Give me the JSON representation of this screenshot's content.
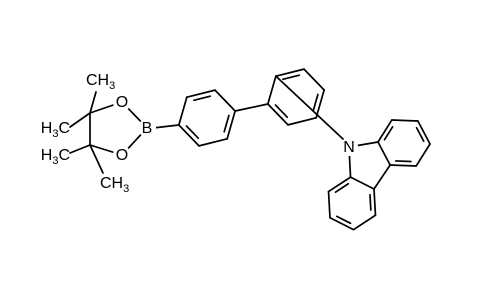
{
  "atoms": {
    "nitrogen": "N",
    "boron": "B",
    "oxygen_top": "O",
    "oxygen_bottom": "O"
  },
  "methyls": [
    {
      "main": "CH",
      "sub": "3"
    },
    {
      "main": "H",
      "sub": "3",
      "tail": "C"
    },
    {
      "main": "H",
      "sub": "3",
      "tail": "C"
    },
    {
      "main": "CH",
      "sub": "3"
    }
  ]
}
